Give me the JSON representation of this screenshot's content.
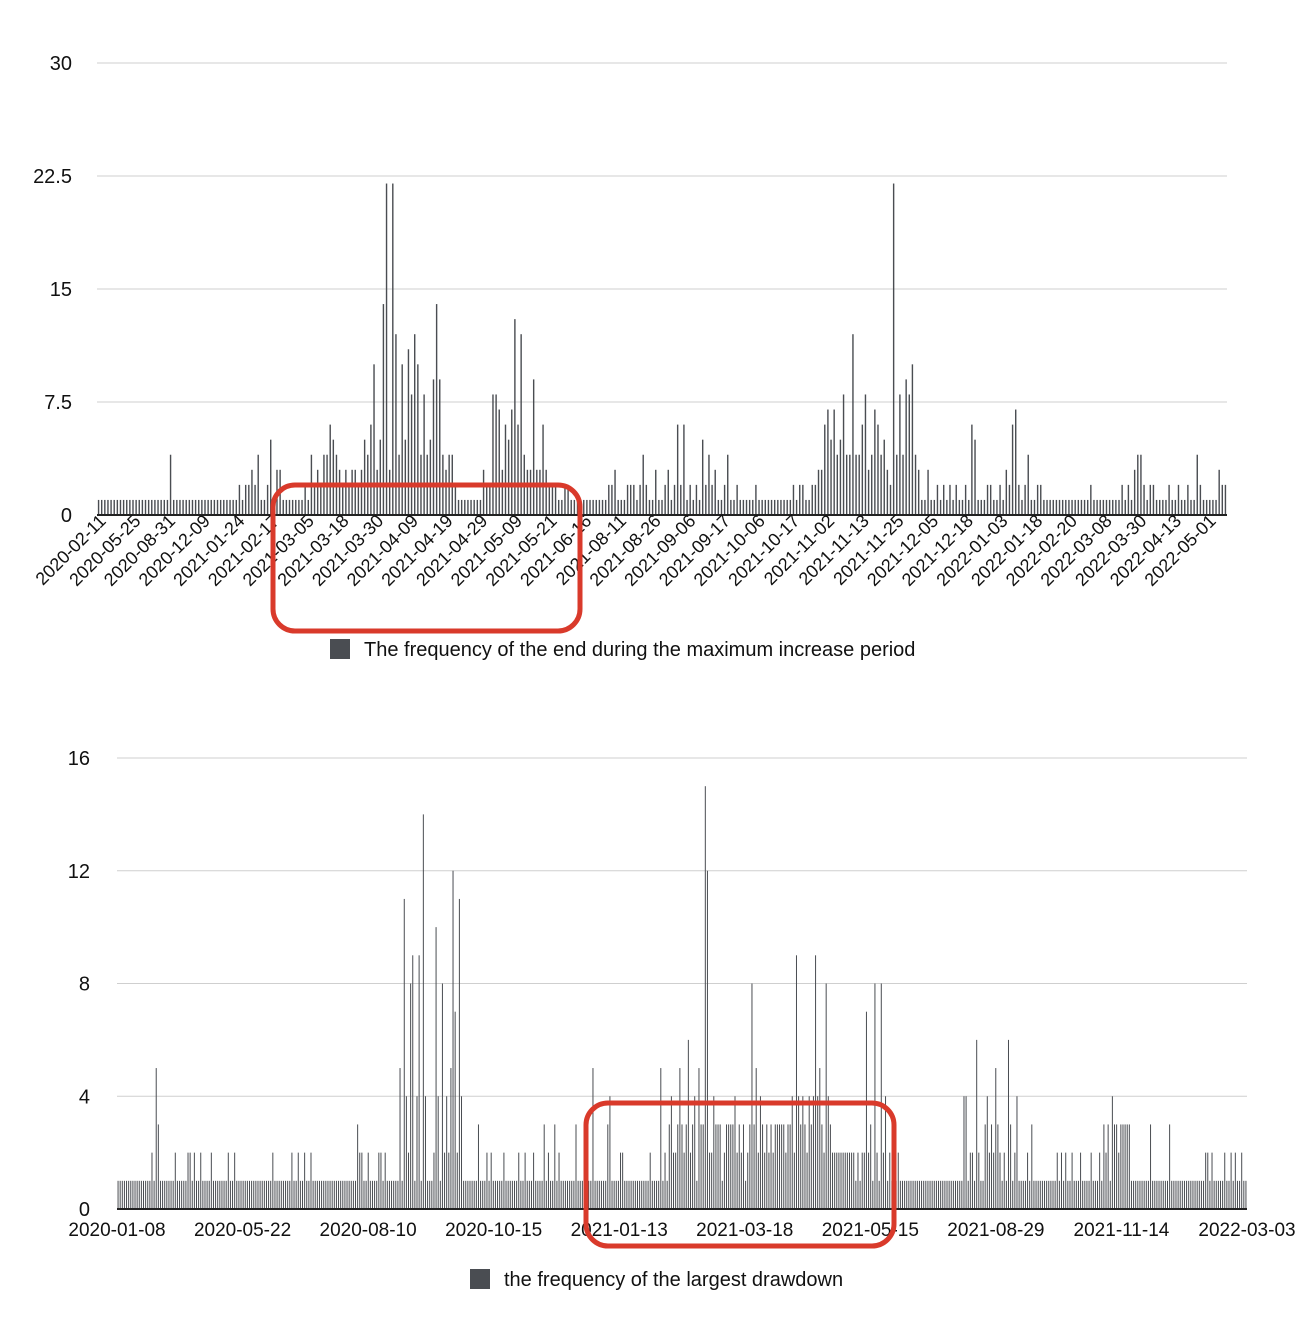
{
  "colors": {
    "bar": "#4a4d52",
    "grid": "#cfcfcf",
    "axis": "#222222",
    "highlight": "#d93a2b"
  },
  "chart_data": [
    {
      "type": "bar",
      "title": "",
      "xlabel": "",
      "ylabel": "",
      "ylim": [
        0,
        30
      ],
      "yticks": [
        "0",
        "7.5",
        "15",
        "22.5",
        "30"
      ],
      "grid": true,
      "legend_position": "bottom",
      "xtick_labels": [
        "2020-02-11",
        "2020-05-25",
        "2020-08-31",
        "2020-12-09",
        "2021-01-24",
        "2021-02-17",
        "2021-03-05",
        "2021-03-18",
        "2021-03-30",
        "2021-04-09",
        "2021-04-19",
        "2021-04-29",
        "2021-05-09",
        "2021-05-21",
        "2021-06-16",
        "2021-08-11",
        "2021-08-26",
        "2021-09-06",
        "2021-09-17",
        "2021-10-06",
        "2021-10-17",
        "2021-11-02",
        "2021-11-13",
        "2021-11-25",
        "2021-12-05",
        "2021-12-18",
        "2022-01-03",
        "2022-01-18",
        "2022-02-20",
        "2022-03-08",
        "2022-03-30",
        "2022-04-13",
        "2022-05-01"
      ],
      "highlight_range": [
        "2021-03-05",
        "2021-05-21"
      ],
      "series": [
        {
          "name": "The frequency of the end during the maximum increase period",
          "values": [
            1,
            1,
            1,
            1,
            1,
            1,
            1,
            1,
            1,
            1,
            1,
            1,
            1,
            1,
            1,
            1,
            1,
            1,
            1,
            1,
            1,
            1,
            1,
            4,
            1,
            1,
            1,
            1,
            1,
            1,
            1,
            1,
            1,
            1,
            1,
            1,
            1,
            1,
            1,
            1,
            1,
            1,
            1,
            1,
            1,
            2,
            1,
            2,
            2,
            3,
            2,
            4,
            1,
            1,
            2,
            5,
            1,
            3,
            3,
            1,
            1,
            1,
            1,
            1,
            1,
            1,
            2,
            1,
            4,
            2,
            3,
            2,
            4,
            4,
            6,
            5,
            4,
            3,
            2,
            3,
            2,
            3,
            3,
            2,
            3,
            5,
            4,
            6,
            10,
            3,
            5,
            14,
            22,
            3,
            22,
            12,
            4,
            10,
            5,
            11,
            8,
            12,
            10,
            4,
            8,
            4,
            5,
            9,
            14,
            9,
            4,
            3,
            4,
            4,
            2,
            1,
            1,
            1,
            1,
            1,
            1,
            1,
            1,
            3,
            2,
            2,
            8,
            8,
            7,
            3,
            6,
            5,
            7,
            13,
            6,
            12,
            4,
            3,
            3,
            9,
            3,
            3,
            6,
            3,
            2,
            2,
            2,
            1,
            1,
            2,
            2,
            1,
            1,
            1,
            1,
            1,
            1,
            1,
            1,
            1,
            1,
            1,
            1,
            2,
            2,
            3,
            1,
            1,
            1,
            2,
            2,
            2,
            1,
            2,
            4,
            2,
            1,
            1,
            3,
            1,
            1,
            2,
            3,
            1,
            2,
            6,
            2,
            6,
            1,
            2,
            1,
            2,
            1,
            5,
            2,
            4,
            2,
            3,
            1,
            1,
            2,
            4,
            1,
            1,
            2,
            1,
            1,
            1,
            1,
            1,
            2,
            1,
            1,
            1,
            1,
            1,
            1,
            1,
            1,
            1,
            1,
            1,
            2,
            1,
            2,
            2,
            1,
            1,
            2,
            2,
            3,
            3,
            6,
            7,
            5,
            7,
            4,
            5,
            8,
            4,
            4,
            12,
            4,
            4,
            6,
            8,
            3,
            4,
            7,
            6,
            4,
            5,
            3,
            2,
            22,
            4,
            8,
            4,
            9,
            8,
            10,
            4,
            3,
            1,
            1,
            3,
            1,
            1,
            2,
            1,
            2,
            1,
            2,
            1,
            2,
            1,
            1,
            2,
            1,
            6,
            5,
            1,
            1,
            1,
            2,
            2,
            1,
            1,
            2,
            1,
            3,
            2,
            6,
            7,
            2,
            1,
            2,
            4,
            1,
            1,
            2,
            2,
            1,
            1,
            1,
            1,
            1,
            1,
            1,
            1,
            1,
            1,
            1,
            1,
            1,
            1,
            1,
            2,
            1,
            1,
            1,
            1,
            1,
            1,
            1,
            1,
            1,
            2,
            1,
            2,
            1,
            3,
            4,
            4,
            2,
            1,
            2,
            2,
            1,
            1,
            1,
            1,
            2,
            1,
            1,
            2,
            1,
            1,
            2,
            1,
            1,
            4,
            2,
            1,
            1,
            1,
            1,
            1,
            3,
            2,
            2
          ]
        }
      ]
    },
    {
      "type": "bar",
      "title": "",
      "xlabel": "",
      "ylabel": "",
      "ylim": [
        0,
        16
      ],
      "yticks": [
        "0",
        "4",
        "8",
        "12",
        "16"
      ],
      "grid": true,
      "legend_position": "bottom",
      "xtick_labels": [
        "2020-01-08",
        "2020-05-22",
        "2020-08-10",
        "2020-10-15",
        "2021-01-13",
        "2021-03-18",
        "2021-05-15",
        "2021-08-29",
        "2021-11-14",
        "2022-03-03"
      ],
      "highlight_range": [
        "2021-01-13",
        "2021-05-15"
      ],
      "series": [
        {
          "name": "the frequency of the largest drawdown",
          "values": [
            1,
            1,
            1,
            1,
            1,
            1,
            1,
            1,
            1,
            1,
            1,
            1,
            1,
            1,
            1,
            1,
            2,
            1,
            5,
            3,
            1,
            1,
            1,
            1,
            1,
            1,
            1,
            2,
            1,
            1,
            1,
            1,
            1,
            2,
            2,
            1,
            2,
            1,
            1,
            2,
            1,
            1,
            1,
            1,
            2,
            1,
            1,
            1,
            1,
            1,
            1,
            1,
            2,
            1,
            1,
            2,
            1,
            1,
            1,
            1,
            1,
            1,
            1,
            1,
            1,
            1,
            1,
            1,
            1,
            1,
            1,
            1,
            1,
            2,
            1,
            1,
            1,
            1,
            1,
            1,
            1,
            1,
            2,
            1,
            1,
            2,
            1,
            1,
            2,
            1,
            1,
            2,
            1,
            1,
            1,
            1,
            1,
            1,
            1,
            1,
            1,
            1,
            1,
            1,
            1,
            1,
            1,
            1,
            1,
            1,
            1,
            1,
            1,
            3,
            2,
            2,
            1,
            1,
            2,
            1,
            1,
            1,
            1,
            2,
            2,
            1,
            2,
            1,
            1,
            1,
            1,
            1,
            1,
            5,
            1,
            11,
            4,
            2,
            8,
            9,
            1,
            4,
            9,
            1,
            14,
            4,
            1,
            1,
            1,
            2,
            10,
            4,
            1,
            8,
            2,
            4,
            2,
            5,
            12,
            7,
            2,
            11,
            4,
            1,
            1,
            1,
            1,
            1,
            1,
            1,
            3,
            1,
            1,
            1,
            2,
            1,
            2,
            1,
            1,
            1,
            1,
            1,
            2,
            1,
            1,
            1,
            1,
            1,
            1,
            2,
            1,
            1,
            2,
            1,
            1,
            1,
            2,
            1,
            1,
            1,
            1,
            3,
            1,
            2,
            1,
            1,
            3,
            1,
            2,
            1,
            1,
            1,
            1,
            1,
            1,
            1,
            3,
            1,
            1,
            1,
            1,
            2,
            1,
            1,
            5,
            1,
            1,
            1,
            1,
            1,
            1,
            3,
            4,
            1,
            1,
            1,
            1,
            2,
            2,
            1,
            1,
            1,
            1,
            1,
            1,
            1,
            1,
            1,
            1,
            1,
            1,
            2,
            1,
            1,
            1,
            1,
            5,
            1,
            2,
            1,
            3,
            4,
            2,
            2,
            3,
            5,
            3,
            2,
            3,
            6,
            2,
            3,
            4,
            1,
            5,
            3,
            3,
            15,
            12,
            2,
            2,
            4,
            3,
            3,
            3,
            1,
            2,
            3,
            3,
            3,
            3,
            4,
            2,
            3,
            2,
            3,
            1,
            2,
            3,
            8,
            3,
            5,
            2,
            4,
            3,
            2,
            3,
            2,
            3,
            2,
            3,
            3,
            3,
            3,
            3,
            2,
            3,
            3,
            4,
            2,
            9,
            4,
            3,
            4,
            3,
            2,
            4,
            3,
            4,
            9,
            4,
            5,
            3,
            2,
            8,
            4,
            3,
            2,
            2,
            2,
            2,
            2,
            2,
            2,
            2,
            2,
            2,
            2,
            1,
            2,
            1,
            2,
            2,
            7,
            2,
            3,
            1,
            8,
            2,
            1,
            8,
            2,
            4,
            1,
            2,
            1,
            1,
            1,
            2,
            1,
            1,
            1,
            1,
            1,
            1,
            1,
            1,
            1,
            1,
            1,
            1,
            1,
            1,
            1,
            1,
            1,
            1,
            1,
            1,
            1,
            1,
            1,
            1,
            1,
            1,
            1,
            1,
            1,
            1,
            4,
            4,
            1,
            2,
            2,
            1,
            6,
            2,
            1,
            1,
            3,
            4,
            2,
            3,
            2,
            5,
            3,
            2,
            1,
            2,
            1,
            6,
            3,
            1,
            2,
            4,
            1,
            1,
            1,
            1,
            2,
            1,
            3,
            1,
            1,
            1,
            1,
            1,
            1,
            1,
            1,
            1,
            1,
            1,
            2,
            1,
            2,
            1,
            2,
            1,
            1,
            2,
            1,
            1,
            1,
            2,
            1,
            1,
            1,
            1,
            2,
            1,
            1,
            1,
            2,
            1,
            3,
            2,
            3,
            1,
            4,
            3,
            3,
            2,
            3,
            3,
            3,
            3,
            3,
            1,
            1,
            1,
            1,
            1,
            1,
            1,
            1,
            1,
            3,
            1,
            1,
            1,
            1,
            1,
            1,
            1,
            1,
            3,
            1,
            1,
            1,
            1,
            1,
            1,
            1,
            1,
            1,
            1,
            1,
            1,
            1,
            1,
            1,
            1,
            2,
            2,
            1,
            2,
            1,
            1,
            1,
            1,
            1,
            2,
            1,
            1,
            2,
            1,
            2,
            1,
            1,
            2,
            1,
            1
          ]
        }
      ]
    }
  ]
}
